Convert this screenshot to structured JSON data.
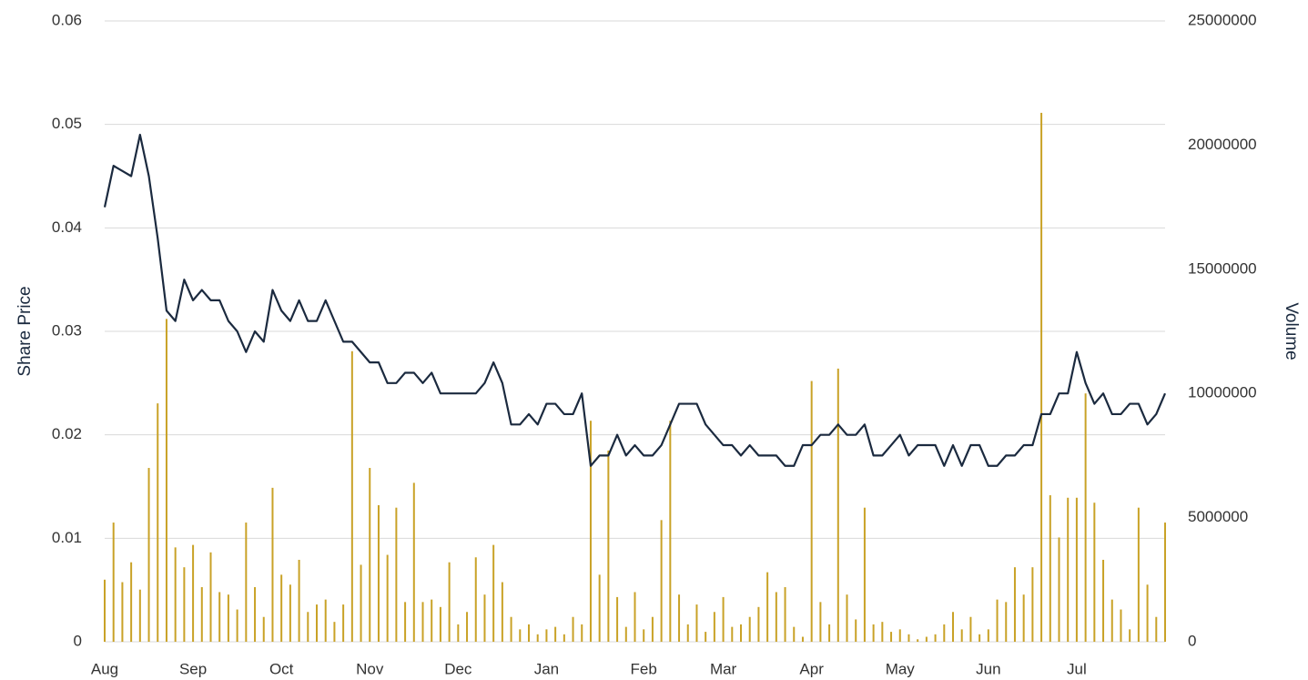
{
  "chart_data": {
    "type": "combo",
    "y_label": "Share Price",
    "y2_label": "Volume",
    "categories": [
      "Aug",
      null,
      null,
      null,
      null,
      null,
      null,
      null,
      null,
      null,
      "Sep",
      null,
      null,
      null,
      null,
      null,
      null,
      null,
      null,
      null,
      "Oct",
      null,
      null,
      null,
      null,
      null,
      null,
      null,
      null,
      null,
      "Nov",
      null,
      null,
      null,
      null,
      null,
      null,
      null,
      null,
      null,
      "Dec",
      null,
      null,
      null,
      null,
      null,
      null,
      null,
      null,
      null,
      "Jan",
      null,
      null,
      null,
      null,
      null,
      null,
      null,
      null,
      null,
      null,
      "Feb",
      null,
      null,
      null,
      null,
      null,
      null,
      null,
      null,
      "Mar",
      null,
      null,
      null,
      null,
      null,
      null,
      null,
      null,
      null,
      "Apr",
      null,
      null,
      null,
      null,
      null,
      null,
      null,
      null,
      null,
      "May",
      null,
      null,
      null,
      null,
      null,
      null,
      null,
      null,
      null,
      "Jun",
      null,
      null,
      null,
      null,
      null,
      null,
      null,
      null,
      null,
      "Jul",
      null,
      null,
      null,
      null,
      null,
      null,
      null,
      null,
      null,
      null
    ],
    "series": [
      {
        "type": "bar",
        "axis": "y2",
        "color": "#c9a227",
        "values": [
          2500000,
          4800000,
          2400000,
          3200000,
          2100000,
          7000000,
          9600000,
          13000000,
          3800000,
          3000000,
          3900000,
          2200000,
          3600000,
          2000000,
          1900000,
          1300000,
          4800000,
          2200000,
          1000000,
          6200000,
          2700000,
          2300000,
          3300000,
          1200000,
          1500000,
          1700000,
          800000,
          1500000,
          11700000,
          3100000,
          7000000,
          5500000,
          3500000,
          5400000,
          1600000,
          6400000,
          1600000,
          1700000,
          1400000,
          3200000,
          700000,
          1200000,
          3400000,
          1900000,
          3900000,
          2400000,
          1000000,
          500000,
          700000,
          300000,
          500000,
          600000,
          300000,
          1000000,
          700000,
          8900000,
          2700000,
          7700000,
          1800000,
          600000,
          2000000,
          500000,
          1000000,
          4900000,
          8900000,
          1900000,
          700000,
          1500000,
          400000,
          1200000,
          1800000,
          600000,
          700000,
          1000000,
          1400000,
          2800000,
          2000000,
          2200000,
          600000,
          200000,
          10500000,
          1600000,
          700000,
          11000000,
          1900000,
          900000,
          5400000,
          700000,
          800000,
          400000,
          500000,
          300000,
          100000,
          200000,
          300000,
          700000,
          1200000,
          500000,
          1000000,
          300000,
          500000,
          1700000,
          1600000,
          3000000,
          1900000,
          3000000,
          21300000,
          5900000,
          4200000,
          5800000,
          5800000,
          10000000,
          5600000,
          3300000,
          1700000,
          1300000,
          500000,
          5400000,
          2300000,
          1000000,
          4800000
        ]
      },
      {
        "type": "line",
        "color": "#1b2a3f",
        "values": [
          0.042,
          0.046,
          0.0455,
          0.045,
          0.049,
          0.045,
          0.039,
          0.032,
          0.031,
          0.035,
          0.033,
          0.034,
          0.033,
          0.033,
          0.031,
          0.03,
          0.028,
          0.03,
          0.029,
          0.034,
          0.032,
          0.031,
          0.033,
          0.031,
          0.031,
          0.033,
          0.031,
          0.029,
          0.029,
          0.028,
          0.027,
          0.027,
          0.025,
          0.025,
          0.026,
          0.026,
          0.025,
          0.026,
          0.024,
          0.024,
          0.024,
          0.024,
          0.024,
          0.025,
          0.027,
          0.025,
          0.021,
          0.021,
          0.022,
          0.021,
          0.023,
          0.023,
          0.022,
          0.022,
          0.024,
          0.017,
          0.018,
          0.018,
          0.02,
          0.018,
          0.019,
          0.018,
          0.018,
          0.019,
          0.021,
          0.023,
          0.023,
          0.023,
          0.021,
          0.02,
          0.019,
          0.019,
          0.018,
          0.019,
          0.018,
          0.018,
          0.018,
          0.017,
          0.017,
          0.019,
          0.019,
          0.02,
          0.02,
          0.021,
          0.02,
          0.02,
          0.021,
          0.018,
          0.018,
          0.019,
          0.02,
          0.018,
          0.019,
          0.019,
          0.019,
          0.017,
          0.019,
          0.017,
          0.019,
          0.019,
          0.017,
          0.017,
          0.018,
          0.018,
          0.019,
          0.019,
          0.022,
          0.022,
          0.024,
          0.024,
          0.028,
          0.025,
          0.023,
          0.024,
          0.022,
          0.022,
          0.023,
          0.023,
          0.021,
          0.022,
          0.024
        ]
      }
    ],
    "ylim": [
      0,
      0.06
    ],
    "yticks": [
      0,
      0.01,
      0.02,
      0.03,
      0.04,
      0.05,
      0.06
    ],
    "y2lim": [
      0,
      25000000
    ],
    "y2ticks": [
      0,
      5000000,
      10000000,
      15000000,
      20000000,
      25000000
    ],
    "grid": true
  }
}
